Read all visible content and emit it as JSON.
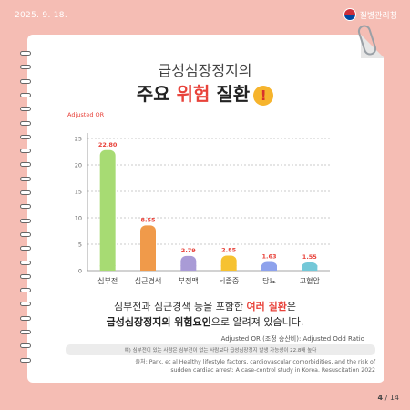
{
  "header": {
    "date": "2025. 9. 18.",
    "agency": "질병관리청"
  },
  "title": {
    "line1": "급성심장정지의",
    "line2_pre": "주요 ",
    "line2_hl": "위험",
    "line2_post": " 질환",
    "excl": "!"
  },
  "chart_data": {
    "type": "bar",
    "ylabel": "Adjusted OR",
    "ylim": [
      0,
      25
    ],
    "yticks": [
      "0",
      "5",
      "10",
      "15",
      "20",
      "25"
    ],
    "grid": true,
    "categories": [
      "심부전",
      "심근경색",
      "부정맥",
      "뇌졸중",
      "당뇨",
      "고혈압"
    ],
    "values": [
      22.8,
      8.55,
      2.79,
      2.85,
      1.63,
      1.55
    ],
    "value_labels": [
      "22.80",
      "8.55",
      "2.79",
      "2.85",
      "1.63",
      "1.55"
    ],
    "colors": [
      "#a7db73",
      "#f09a4a",
      "#a99bd6",
      "#f6c231",
      "#8ea2ec",
      "#74c8d8"
    ],
    "label_color": "#e8423a"
  },
  "caption": {
    "line1_pre": "심부전과 심근경색 등을 포함한 ",
    "line1_hl": "여러 질환",
    "line1_post": "은",
    "line2_bold": "급성심장정지의 위험요인",
    "line2_post": "으로 알려져 있습니다."
  },
  "notes": {
    "aor": "Adjusted OR (조정 승산비): Adjusted Odd Ratio",
    "explain": "예) 심부전이 있는 사람은 심부전이 없는 사람보다 급성심장정지 발생 가능성이 22.8배 높다",
    "source_line1": "출처: Park, et al Healthy lifestyle factors, cardiovascular comorbidities, and the risk of",
    "source_line2": "sudden cardiac arrest: A case-control study in Korea. Resuscitation 2022"
  },
  "page": {
    "current": "4",
    "total": "/ 14"
  }
}
